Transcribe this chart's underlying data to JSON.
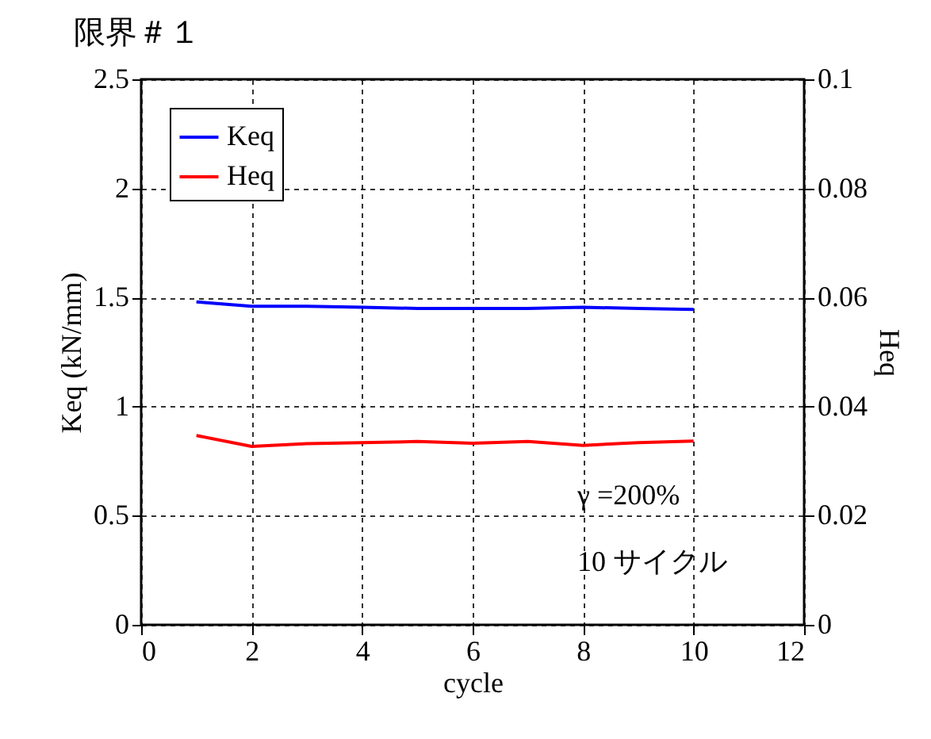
{
  "chart_data": {
    "type": "line",
    "title": "限界＃１",
    "xlabel": "cycle",
    "ylabel": "Keq (kN/mm)",
    "y2label": "Heq",
    "x": [
      1,
      2,
      3,
      4,
      5,
      6,
      7,
      8,
      9,
      10
    ],
    "series": [
      {
        "name": "Keq",
        "color": "#0000ff",
        "values": [
          1.48,
          1.46,
          1.46,
          1.455,
          1.45,
          1.45,
          1.45,
          1.455,
          1.45,
          1.445
        ]
      },
      {
        "name": "Heq",
        "color": "#ff0000",
        "axis": "y2",
        "values": [
          0.0347,
          0.0327,
          0.0332,
          0.0334,
          0.0336,
          0.0333,
          0.0336,
          0.0329,
          0.0334,
          0.0337
        ]
      }
    ],
    "xlim": [
      0,
      12
    ],
    "xticks": [
      0,
      2,
      4,
      6,
      8,
      10,
      12
    ],
    "ylim": [
      0,
      2.5
    ],
    "yticks": [
      0,
      0.5,
      1,
      1.5,
      2,
      2.5
    ],
    "y2lim": [
      0,
      0.1
    ],
    "y2ticks": [
      0,
      0.02,
      0.04,
      0.06,
      0.08,
      0.1
    ],
    "annotations": [
      "γ =200%",
      "10 サイクル"
    ],
    "grid": true,
    "legend": "top left",
    "marker": "none",
    "line_style": "solid"
  }
}
